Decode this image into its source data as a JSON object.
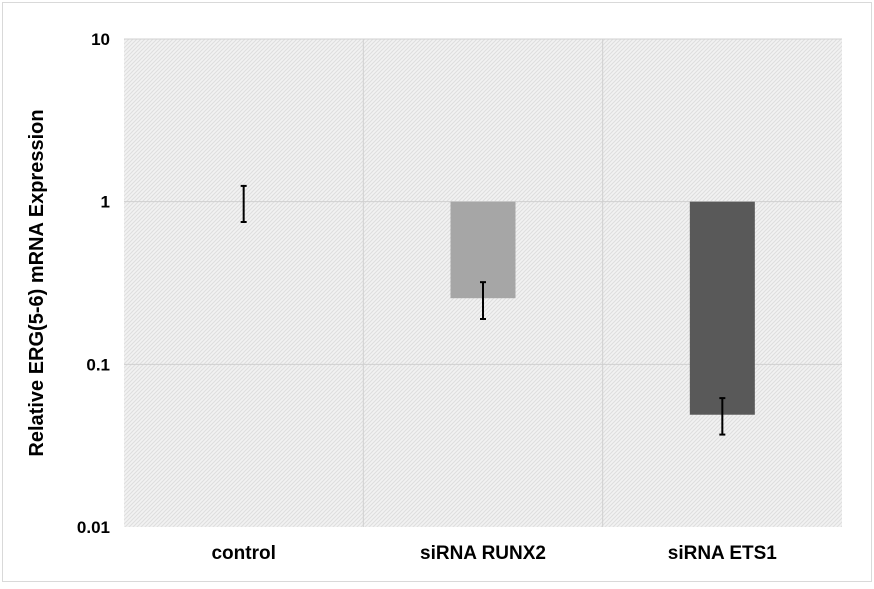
{
  "chart_data": {
    "type": "bar",
    "title": "",
    "xlabel": "",
    "ylabel": "Relative ERG(5-6) mRNA Expression",
    "yscale": "log",
    "ylim": [
      0.01,
      10
    ],
    "yticks": [
      {
        "value": 10,
        "label": "10"
      },
      {
        "value": 1,
        "label": "1"
      },
      {
        "value": 0.1,
        "label": "0.1"
      },
      {
        "value": 0.01,
        "label": "0.01"
      }
    ],
    "baseline": 1,
    "grid": true,
    "legend": "none",
    "categories": [
      "control",
      "siRNA RUNX2",
      "siRNA ETS1"
    ],
    "values": [
      1.0,
      0.255,
      0.049
    ],
    "error_low": [
      0.75,
      0.19,
      0.037
    ],
    "error_high": [
      1.25,
      0.32,
      0.062
    ],
    "colors": [
      "#d9d9d9",
      "#a6a6a6",
      "#595959"
    ],
    "plot_background": "#ececec"
  }
}
